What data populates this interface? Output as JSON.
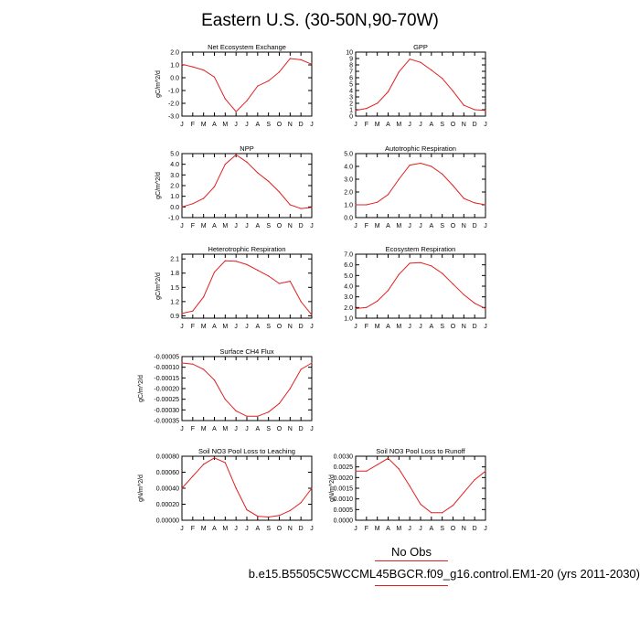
{
  "figure": {
    "title": "Eastern U.S. (30-50N,90-70W)",
    "legend_label": "No Obs",
    "case_label": "b.e15.B5505C5WCCML45BGCR.f09_g16.control.EM1-20 (yrs 2011-2030)",
    "series_color": "#e02020"
  },
  "chart_data": [
    {
      "type": "line",
      "title": "Net Ecosystem Exchange",
      "ylabel": "gC/m^2/d",
      "x": [
        "J",
        "F",
        "M",
        "A",
        "M",
        "J",
        "J",
        "A",
        "S",
        "O",
        "N",
        "D",
        "J"
      ],
      "ylim": [
        -3.0,
        2.0
      ],
      "yticks": [
        -3.0,
        -2.0,
        -1.0,
        0.0,
        1.0,
        2.0
      ],
      "ytick_labels": [
        "-3.0",
        "-2.0",
        "-1.0",
        "0.0",
        "1.0",
        "2.0"
      ],
      "values": [
        1.05,
        0.85,
        0.6,
        0.05,
        -1.65,
        -2.65,
        -1.8,
        -0.65,
        -0.25,
        0.45,
        1.5,
        1.4,
        1.05
      ]
    },
    {
      "type": "line",
      "title": "GPP",
      "ylabel": "",
      "x": [
        "J",
        "F",
        "M",
        "A",
        "M",
        "J",
        "J",
        "A",
        "S",
        "O",
        "N",
        "D",
        "J"
      ],
      "ylim": [
        0,
        10
      ],
      "yticks": [
        0,
        1,
        2,
        3,
        4,
        5,
        6,
        7,
        8,
        9,
        10
      ],
      "ytick_labels": [
        "0",
        "1",
        "2",
        "3",
        "4",
        "5",
        "6",
        "7",
        "8",
        "9",
        "10"
      ],
      "values": [
        0.9,
        1.2,
        2.0,
        3.8,
        6.9,
        8.9,
        8.4,
        7.2,
        5.9,
        3.9,
        1.7,
        1.0,
        0.9
      ]
    },
    {
      "type": "line",
      "title": "NPP",
      "ylabel": "gC/m^2/d",
      "x": [
        "J",
        "F",
        "M",
        "A",
        "M",
        "J",
        "J",
        "A",
        "S",
        "O",
        "N",
        "D",
        "J"
      ],
      "ylim": [
        -1.0,
        5.0
      ],
      "yticks": [
        -1.0,
        0.0,
        1.0,
        2.0,
        3.0,
        4.0,
        5.0
      ],
      "ytick_labels": [
        "-1.0",
        "0.0",
        "1.0",
        "2.0",
        "3.0",
        "4.0",
        "5.0"
      ],
      "values": [
        0.0,
        0.3,
        0.8,
        1.9,
        4.0,
        4.9,
        4.2,
        3.2,
        2.4,
        1.4,
        0.2,
        -0.15,
        -0.05
      ]
    },
    {
      "type": "line",
      "title": "Autotrophic Respiration",
      "ylabel": "",
      "x": [
        "J",
        "F",
        "M",
        "A",
        "M",
        "J",
        "J",
        "A",
        "S",
        "O",
        "N",
        "D",
        "J"
      ],
      "ylim": [
        0.0,
        5.0
      ],
      "yticks": [
        0.0,
        1.0,
        2.0,
        3.0,
        4.0,
        5.0
      ],
      "ytick_labels": [
        "0.0",
        "1.0",
        "2.0",
        "3.0",
        "4.0",
        "5.0"
      ],
      "values": [
        1.0,
        1.0,
        1.2,
        1.8,
        3.0,
        4.1,
        4.25,
        4.0,
        3.4,
        2.5,
        1.5,
        1.15,
        1.0
      ]
    },
    {
      "type": "line",
      "title": "Heterotrophic Respiration",
      "ylabel": "gC/m^2/d",
      "x": [
        "J",
        "F",
        "M",
        "A",
        "M",
        "J",
        "J",
        "A",
        "S",
        "O",
        "N",
        "D",
        "J"
      ],
      "ylim": [
        0.85,
        2.2
      ],
      "yticks": [
        0.9,
        1.2,
        1.5,
        1.8,
        2.1
      ],
      "ytick_labels": [
        "0.9",
        "1.2",
        "1.5",
        "1.8",
        "2.1"
      ],
      "values": [
        0.95,
        1.0,
        1.3,
        1.82,
        2.06,
        2.05,
        1.98,
        1.86,
        1.74,
        1.58,
        1.63,
        1.2,
        0.92
      ]
    },
    {
      "type": "line",
      "title": "Ecosystem Respiration",
      "ylabel": "",
      "x": [
        "J",
        "F",
        "M",
        "A",
        "M",
        "J",
        "J",
        "A",
        "S",
        "O",
        "N",
        "D",
        "J"
      ],
      "ylim": [
        1.0,
        7.0
      ],
      "yticks": [
        1.0,
        2.0,
        3.0,
        4.0,
        5.0,
        6.0,
        7.0
      ],
      "ytick_labels": [
        "1.0",
        "2.0",
        "3.0",
        "4.0",
        "5.0",
        "6.0",
        "7.0"
      ],
      "values": [
        1.9,
        2.0,
        2.6,
        3.6,
        5.1,
        6.15,
        6.2,
        5.9,
        5.2,
        4.2,
        3.2,
        2.4,
        1.9
      ]
    },
    {
      "type": "line",
      "title": "Surface CH4 Flux",
      "ylabel": "gC/m^2/d",
      "x": [
        "J",
        "F",
        "M",
        "A",
        "M",
        "J",
        "J",
        "A",
        "S",
        "O",
        "N",
        "D",
        "J"
      ],
      "ylim": [
        -0.00035,
        -5e-05
      ],
      "yticks": [
        -0.00035,
        -0.0003,
        -0.00025,
        -0.0002,
        -0.00015,
        -0.0001,
        -5e-05
      ],
      "ytick_labels": [
        "-0.00035",
        "-0.00030",
        "-0.00025",
        "-0.00020",
        "-0.00015",
        "-0.00010",
        "-0.00005"
      ],
      "values": [
        -8e-05,
        -8.5e-05,
        -0.00011,
        -0.00016,
        -0.00025,
        -0.000305,
        -0.00033,
        -0.00033,
        -0.00031,
        -0.00027,
        -0.0002,
        -0.00011,
        -8e-05
      ]
    },
    {
      "type": "line",
      "title": "Soil NO3 Pool Loss to Leaching",
      "ylabel": "gN/m^2/d",
      "x": [
        "J",
        "F",
        "M",
        "A",
        "M",
        "J",
        "J",
        "A",
        "S",
        "O",
        "N",
        "D",
        "J"
      ],
      "ylim": [
        0.0,
        0.0008
      ],
      "yticks": [
        0.0,
        0.0002,
        0.0004,
        0.0006,
        0.0008
      ],
      "ytick_labels": [
        "0.00000",
        "0.00020",
        "0.00040",
        "0.00060",
        "0.00080"
      ],
      "values": [
        0.0004,
        0.00055,
        0.0007,
        0.00078,
        0.00072,
        0.0004,
        0.00013,
        5e-05,
        4e-05,
        6e-05,
        0.00012,
        0.00022,
        0.0004
      ]
    },
    {
      "type": "line",
      "title": "Soil NO3 Pool Loss to Runoff",
      "ylabel": "gN/m^2/d",
      "x": [
        "J",
        "F",
        "M",
        "A",
        "M",
        "J",
        "J",
        "A",
        "S",
        "O",
        "N",
        "D",
        "J"
      ],
      "ylim": [
        0.0,
        0.003
      ],
      "yticks": [
        0.0,
        0.0005,
        0.001,
        0.0015,
        0.002,
        0.0025,
        0.003
      ],
      "ytick_labels": [
        "0.0000",
        "0.0005",
        "0.0010",
        "0.0015",
        "0.0020",
        "0.0025",
        "0.0030"
      ],
      "values": [
        0.0023,
        0.0023,
        0.0026,
        0.0029,
        0.0024,
        0.0016,
        0.00075,
        0.00035,
        0.00035,
        0.0007,
        0.0013,
        0.0019,
        0.0023
      ]
    }
  ]
}
